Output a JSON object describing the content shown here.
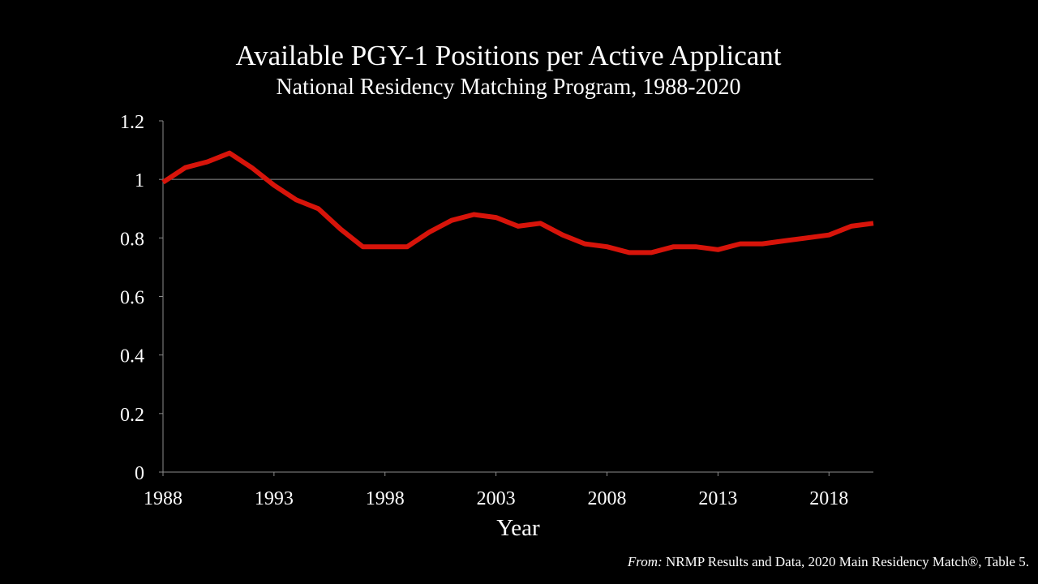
{
  "colors": {
    "background": "#000000",
    "text": "#ffffff",
    "line": "#d7140a",
    "axis": "#8c8c8c"
  },
  "source": {
    "prefix": "From:",
    "text": " NRMP Results and Data, 2020 Main Residency Match®,  Table 5."
  },
  "chart_data": {
    "type": "line",
    "title": "Available PGY-1 Positions per Active Applicant",
    "subtitle": "National Residency Matching Program, 1988-2020",
    "xlabel": "Year",
    "ylabel": "",
    "xlim": [
      1988,
      2020
    ],
    "ylim": [
      0,
      1.2
    ],
    "x_ticks": [
      1988,
      1993,
      1998,
      2003,
      2008,
      2013,
      2018
    ],
    "y_ticks": [
      0,
      0.2,
      0.4,
      0.6,
      0.8,
      1,
      1.2
    ],
    "y_tick_labels": [
      "0",
      "0.2",
      "0.4",
      "0.6",
      "0.8",
      "1",
      "1.2"
    ],
    "reference_lines": [
      1
    ],
    "grid": false,
    "series": [
      {
        "x": [
          1988,
          1989,
          1990,
          1991,
          1992,
          1993,
          1994,
          1995,
          1996,
          1997,
          1998,
          1999,
          2000,
          2001,
          2002,
          2003,
          2004,
          2005,
          2006,
          2007,
          2008,
          2009,
          2010,
          2011,
          2012,
          2013,
          2014,
          2015,
          2016,
          2017,
          2018,
          2019,
          2020
        ],
        "values": [
          0.99,
          1.04,
          1.06,
          1.09,
          1.04,
          0.98,
          0.93,
          0.9,
          0.83,
          0.77,
          0.77,
          0.77,
          0.82,
          0.86,
          0.88,
          0.87,
          0.84,
          0.85,
          0.81,
          0.78,
          0.77,
          0.75,
          0.75,
          0.77,
          0.77,
          0.76,
          0.78,
          0.78,
          0.79,
          0.8,
          0.81,
          0.84,
          0.85
        ]
      }
    ]
  }
}
